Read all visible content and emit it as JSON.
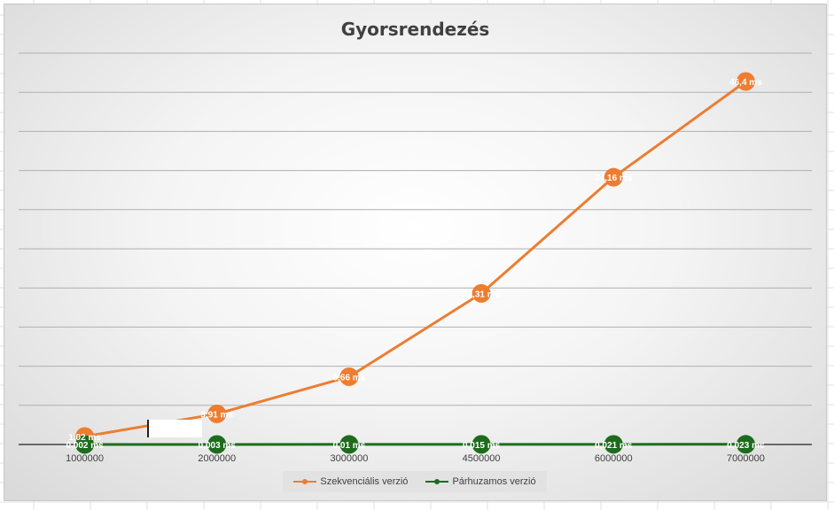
{
  "chart_data": {
    "type": "line",
    "title": "Gyorsrendezés",
    "categories": [
      "1000000",
      "2000000",
      "3000000",
      "4500000",
      "6000000",
      "7000000"
    ],
    "ylim": [
      0,
      46.4
    ],
    "grid": true,
    "legend_position": "bottom",
    "series": [
      {
        "name": "Szekvenciális verzió",
        "color": "#ED7D31",
        "values": [
          1.02,
          3.91,
          8.66,
          19.31,
          34.16,
          46.4
        ],
        "labels": [
          "1,02 ms",
          "3,91 ms",
          "8,66 ms",
          "19,31 ms",
          "34,16 ms",
          "46,4 ms"
        ]
      },
      {
        "name": "Párhuzamos verzió",
        "color": "#1E6B1E",
        "values": [
          0.002,
          0.003,
          0.01,
          0.015,
          0.021,
          0.023
        ],
        "labels": [
          "0,002 ms",
          "0,003 ms",
          "0,01 ms",
          "0,015 ms",
          "0,021 ms",
          "0,023 ms"
        ]
      }
    ]
  }
}
